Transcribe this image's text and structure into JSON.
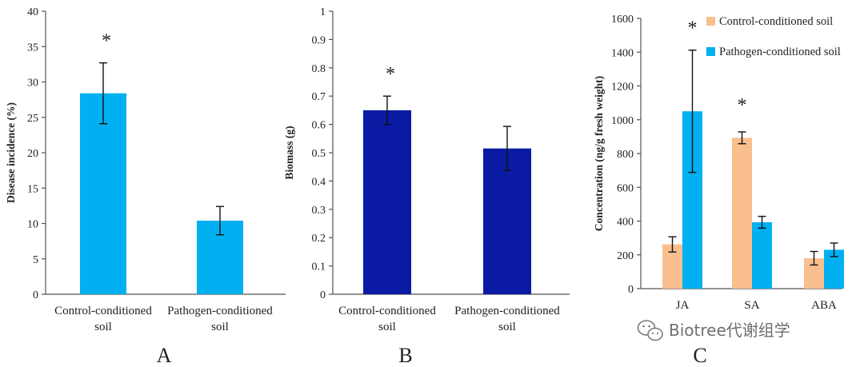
{
  "chart_data": [
    {
      "type": "bar",
      "panel_label": "A",
      "ylabel": "Disease incidence (%)",
      "ylim": [
        0,
        40
      ],
      "yticks": [
        0,
        5,
        10,
        15,
        20,
        25,
        30,
        35,
        40
      ],
      "ytick_labels": [
        "0",
        "5",
        "10",
        "15",
        "20",
        "25",
        "30",
        "35",
        "40"
      ],
      "categories": [
        [
          "Control-conditioned",
          "soil"
        ],
        [
          "Pathogen-conditioned",
          "soil"
        ]
      ],
      "values": [
        28.4,
        10.4
      ],
      "errors": [
        4.3,
        2.0
      ],
      "significance": [
        "*",
        ""
      ],
      "color": "#00b0f0",
      "grid": false
    },
    {
      "type": "bar",
      "panel_label": "B",
      "ylabel": "Biomass (g)",
      "ylim": [
        0,
        1
      ],
      "yticks": [
        0,
        0.1,
        0.2,
        0.3,
        0.4,
        0.5,
        0.6,
        0.7,
        0.8,
        0.9,
        1
      ],
      "ytick_labels": [
        "0",
        "0.1",
        "0.2",
        "0.3",
        "0.4",
        "0.5",
        "0.6",
        "0.7",
        "0.8",
        "0.9",
        "1"
      ],
      "categories": [
        [
          "Control-conditioned",
          "soil"
        ],
        [
          "Pathogen-conditioned",
          "soil"
        ]
      ],
      "values": [
        0.65,
        0.515
      ],
      "errors": [
        0.05,
        0.078
      ],
      "significance": [
        "*",
        ""
      ],
      "color": "#0a1aa3",
      "grid": false
    },
    {
      "type": "bar",
      "panel_label": "C",
      "ylabel": "Concentration (ng/g fresh weight)",
      "ylim": [
        0,
        1600
      ],
      "yticks": [
        0,
        200,
        400,
        600,
        800,
        1000,
        1200,
        1400,
        1600
      ],
      "ytick_labels": [
        "0",
        "200",
        "400",
        "600",
        "800",
        "1000",
        "1200",
        "1400",
        "1600"
      ],
      "categories": [
        "JA",
        "SA",
        "ABA"
      ],
      "series": [
        {
          "name": "Control-conditioned soil",
          "values": [
            262,
            893,
            180
          ],
          "errors": [
            45,
            35,
            40
          ],
          "color": "#f9bf8f"
        },
        {
          "name": "Pathogen-conditioned soil",
          "values": [
            1050,
            393,
            230
          ],
          "errors": [
            362,
            35,
            40
          ],
          "color": "#00b0f0"
        }
      ],
      "significance": [
        {
          "category": "JA",
          "mark": "*"
        },
        {
          "category": "SA",
          "mark": "*"
        }
      ],
      "legend_position": "top-right",
      "grid": false
    }
  ],
  "watermark": {
    "text": "Biotree代谢组学",
    "icon": "wechat-icon"
  }
}
